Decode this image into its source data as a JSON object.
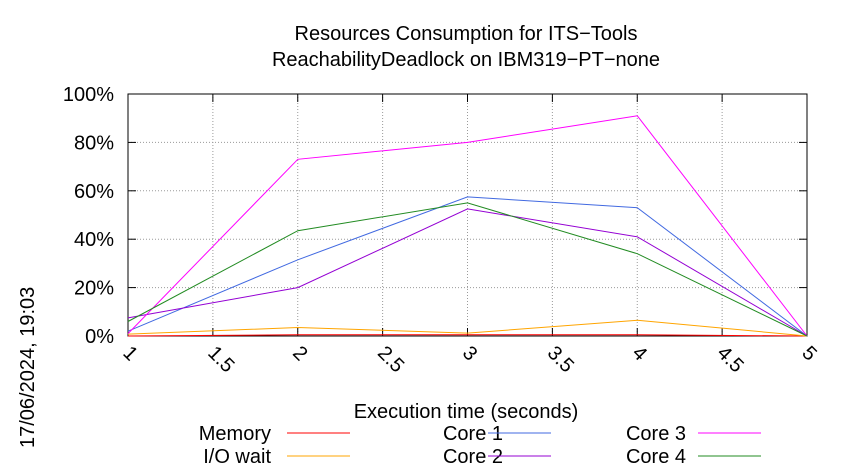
{
  "chart_data": {
    "type": "line",
    "title": "Resources Consumption for ITS−Tools",
    "subtitle": "ReachabilityDeadlock on IBM319−PT−none",
    "xlabel": "Execution time (seconds)",
    "ylabel": "",
    "timestamp": "17/06/2024, 19:03",
    "xlim": [
      1,
      5
    ],
    "ylim": [
      0,
      100
    ],
    "x_ticks": [
      1,
      1.5,
      2,
      2.5,
      3,
      3.5,
      4,
      4.5,
      5
    ],
    "x_tick_labels": [
      "1",
      "1.5",
      "2",
      "2.5",
      "3",
      "3.5",
      "4",
      "4.5",
      "5"
    ],
    "y_ticks": [
      0,
      20,
      40,
      60,
      80,
      100
    ],
    "y_tick_labels": [
      "0%",
      "20%",
      "40%",
      "60%",
      "80%",
      "100%"
    ],
    "grid": true,
    "legend_position": "bottom",
    "x": [
      1,
      2,
      3,
      4,
      5
    ],
    "series": [
      {
        "name": "Memory",
        "color": "#ff0000",
        "values": [
          0,
          0.5,
          0.5,
          0.5,
          0
        ]
      },
      {
        "name": "I/O wait",
        "color": "#ffa500",
        "values": [
          0.8,
          3.5,
          1.2,
          6.5,
          0
        ]
      },
      {
        "name": "Core 1",
        "color": "#4169e1",
        "values": [
          2,
          31.5,
          57.5,
          53,
          0
        ]
      },
      {
        "name": "Core 2",
        "color": "#9400d3",
        "values": [
          7.5,
          20,
          52.5,
          41,
          0
        ]
      },
      {
        "name": "Core 3",
        "color": "#ff00ff",
        "values": [
          1,
          73,
          80,
          91,
          0
        ]
      },
      {
        "name": "Core 4",
        "color": "#228b22",
        "values": [
          6,
          43.5,
          55,
          34,
          0
        ]
      }
    ]
  }
}
